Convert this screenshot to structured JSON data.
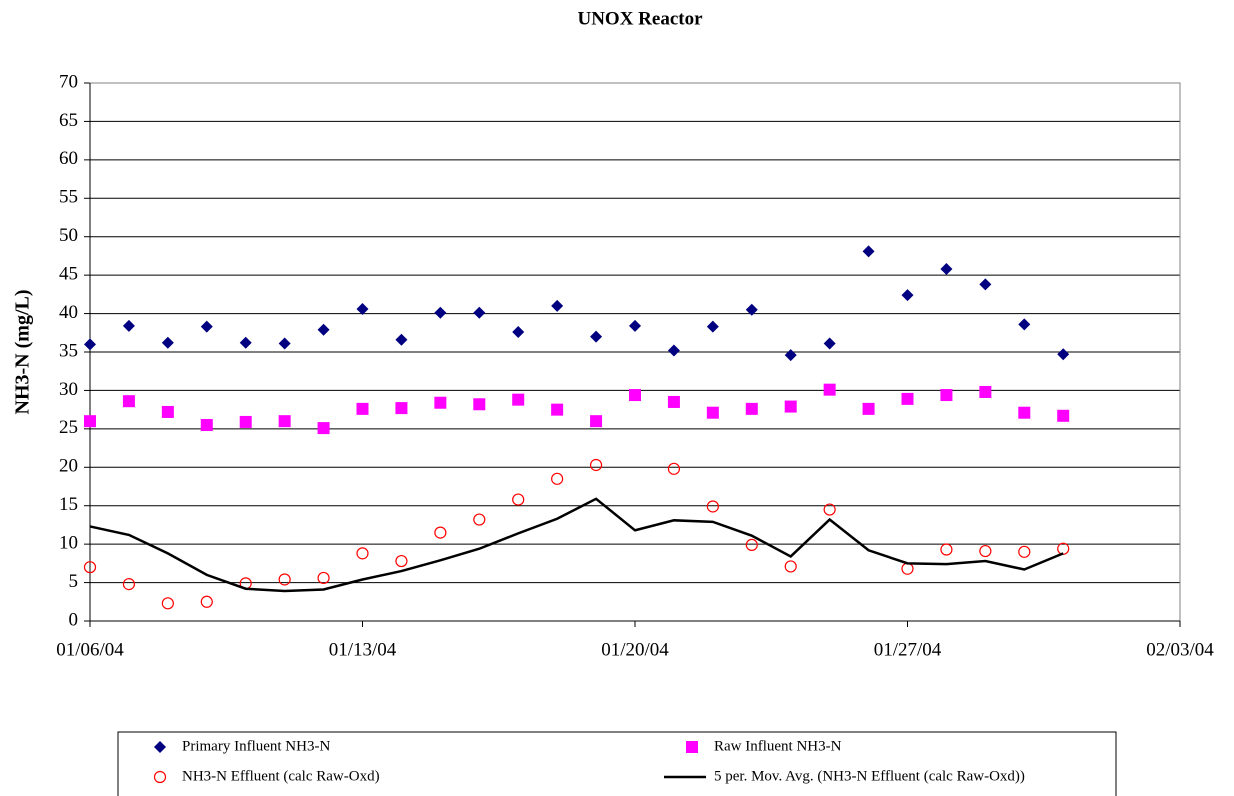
{
  "chart_data": {
    "type": "scatter",
    "title": "UNOX Reactor",
    "y_label": "NH3-N (mg/L)",
    "x": [
      "01/06/04",
      "01/07/04",
      "01/08/04",
      "01/09/04",
      "01/10/04",
      "01/11/04",
      "01/12/04",
      "01/13/04",
      "01/14/04",
      "01/15/04",
      "01/16/04",
      "01/17/04",
      "01/18/04",
      "01/19/04",
      "01/20/04",
      "01/21/04",
      "01/22/04",
      "01/23/04",
      "01/24/04",
      "01/25/04",
      "01/26/04",
      "01/27/04",
      "01/28/04",
      "01/29/04",
      "01/30/04",
      "01/31/04"
    ],
    "xlim": [
      "01/06/04",
      "02/03/04"
    ],
    "xticks": [
      "01/06/04",
      "01/13/04",
      "01/20/04",
      "01/27/04",
      "02/03/04"
    ],
    "ylim": [
      0,
      70
    ],
    "yticks": [
      0,
      5,
      10,
      15,
      20,
      25,
      30,
      35,
      40,
      45,
      50,
      55,
      60,
      65,
      70
    ],
    "grid": true,
    "series": [
      {
        "name": "Primary Influent NH3-N",
        "marker": "diamond",
        "color": "#000080",
        "values": [
          36,
          38.4,
          36.2,
          38.3,
          36.2,
          36.1,
          37.9,
          40.6,
          36.6,
          40.1,
          40.1,
          37.6,
          41,
          37,
          38.4,
          35.2,
          38.3,
          40.5,
          34.6,
          36.1,
          48.1,
          42.4,
          45.8,
          43.8,
          38.6,
          34.7
        ]
      },
      {
        "name": "Raw Influent NH3-N",
        "marker": "square",
        "color": "#ff00ff",
        "values": [
          26,
          28.6,
          27.2,
          25.5,
          25.9,
          26,
          25.1,
          27.6,
          27.7,
          28.4,
          28.2,
          28.8,
          27.5,
          26,
          29.4,
          28.5,
          27.1,
          27.6,
          27.9,
          30.1,
          27.6,
          28.9,
          29.4,
          29.8,
          27.1,
          26.7
        ]
      },
      {
        "name": "NH3-N Effluent (calc Raw-Oxd)",
        "marker": "circle",
        "color": "#ff0000",
        "values": [
          7,
          4.8,
          2.3,
          2.5,
          4.9,
          5.4,
          5.6,
          8.8,
          7.8,
          11.5,
          13.2,
          15.8,
          18.5,
          20.3,
          null,
          19.8,
          14.9,
          9.9,
          7.1,
          14.5,
          null,
          6.8,
          9.3,
          9.1,
          9.0,
          9.4
        ]
      },
      {
        "name": "5 per. Mov. Avg. (NH3-N Effluent (calc Raw-Oxd))",
        "marker": "line",
        "color": "#000000",
        "values": [
          12.3,
          11.2,
          8.8,
          6.0,
          4.2,
          3.9,
          4.1,
          5.4,
          6.5,
          7.9,
          9.4,
          11.4,
          13.3,
          15.9,
          11.8,
          13.1,
          12.9,
          11.1,
          8.4,
          13.2,
          9.2,
          7.5,
          7.4,
          7.8,
          6.7,
          8.8
        ]
      }
    ]
  }
}
